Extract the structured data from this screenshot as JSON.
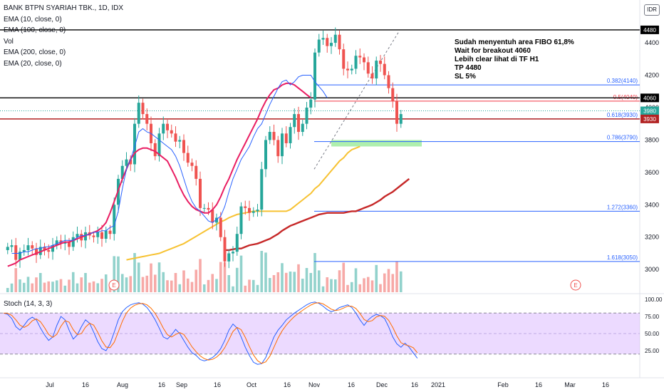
{
  "header": {
    "symbol": "BANK BTPN SYARIAH TBK., 1D, IDX",
    "currency": "IDR",
    "indicators": [
      "EMA (10, close, 0)",
      "EMA (100, close, 0)",
      "Vol",
      "EMA (200, close, 0)",
      "EMA (20, close, 0)"
    ]
  },
  "note": {
    "lines": [
      "Sudah menyentuh area FIBO 61,8%",
      "Wait for breakout 4060",
      "Lebih clear lihat di TF H1",
      "TP 4480",
      "SL 5%"
    ]
  },
  "stoch": {
    "label": "Stoch (14, 3, 3)",
    "levels": [
      100,
      75,
      50,
      25
    ],
    "level_labels": [
      "100.00",
      "75.00",
      "50.00",
      "25.00"
    ],
    "band": [
      20,
      80
    ],
    "k": [
      80,
      78,
      72,
      60,
      55,
      62,
      70,
      74,
      70,
      58,
      48,
      40,
      45,
      62,
      75,
      70,
      55,
      42,
      48,
      60,
      70,
      65,
      52,
      38,
      28,
      25,
      35,
      52,
      70,
      82,
      88,
      92,
      94,
      95,
      93,
      88,
      80,
      70,
      58,
      45,
      42,
      48,
      56,
      50,
      40,
      30,
      22,
      18,
      12,
      10,
      12,
      15,
      20,
      28,
      40,
      55,
      64,
      58,
      45,
      30,
      18,
      8,
      5,
      6,
      15,
      30,
      45,
      55,
      62,
      70,
      75,
      80,
      84,
      88,
      92,
      95,
      96,
      94,
      90,
      85,
      82,
      84,
      88,
      90,
      92,
      88,
      80,
      70,
      62,
      70,
      75,
      78,
      76,
      72,
      60,
      45,
      35,
      30,
      36,
      30,
      22,
      14
    ]
  },
  "chart_data": {
    "type": "candlestick",
    "title": "BANK BTPN SYARIAH TBK., 1D, IDX",
    "ylim": [
      2860,
      4550
    ],
    "y_ticks": [
      3000,
      3200,
      3400,
      3600,
      3800,
      4000,
      4200,
      4400
    ],
    "x_tick_labels": [
      "Jul",
      "16",
      "Aug",
      "16",
      "Sep",
      "16",
      "Oct",
      "16",
      "Nov",
      "16",
      "Dec",
      "16",
      "2021",
      "Feb",
      "16",
      "Mar",
      "16"
    ],
    "closes": [
      3140,
      3150,
      3060,
      3110,
      3120,
      3150,
      3130,
      3090,
      3140,
      3120,
      3110,
      3150,
      3180,
      3160,
      3170,
      3140,
      3200,
      3220,
      3180,
      3230,
      3210,
      3200,
      3230,
      3190,
      3240,
      3220,
      3400,
      3560,
      3640,
      3680,
      3650,
      3900,
      4030,
      3960,
      3900,
      3780,
      3700,
      3840,
      3900,
      3860,
      3840,
      3790,
      3800,
      3720,
      3660,
      3640,
      3560,
      3380,
      3380,
      3370,
      3290,
      3320,
      3200,
      3050,
      3100,
      3110,
      3220,
      3390,
      3380,
      3350,
      3360,
      3370,
      3620,
      3800,
      3850,
      3800,
      3700,
      3840,
      3780,
      3880,
      3960,
      3850,
      3900,
      4000,
      4050,
      4340,
      4420,
      4430,
      4380,
      4400,
      4450,
      4360,
      4240,
      4230,
      4240,
      4320,
      4310,
      4280,
      4210,
      4180,
      4290,
      4270,
      4200,
      4120,
      4040,
      3900,
      3960
    ],
    "candle_start": 1,
    "ema10": [
      3100,
      3100,
      3100,
      3110,
      3110,
      3120,
      3130,
      3130,
      3140,
      3140,
      3150,
      3160,
      3170,
      3180,
      3180,
      3180,
      3200,
      3210,
      3210,
      3220,
      3230,
      3230,
      3240,
      3240,
      3260,
      3270,
      3360,
      3500,
      3620,
      3680,
      3760,
      3850,
      3870,
      3850,
      3840,
      3820,
      3800,
      3780,
      3760,
      3740,
      3700,
      3640,
      3560,
      3480,
      3420,
      3380,
      3360,
      3330,
      3300,
      3290,
      3310,
      3330,
      3390,
      3480,
      3560,
      3620,
      3680,
      3720,
      3760,
      3820,
      3870,
      3900,
      3960,
      4020,
      4070,
      4120,
      4160,
      4170,
      4140,
      4160,
      4190,
      4200,
      4200,
      4200,
      4160,
      4130,
      4100,
      4060
    ],
    "ema10_start": 2,
    "ema20": [
      3020,
      3030,
      3040,
      3060,
      3070,
      3080,
      3090,
      3100,
      3110,
      3120,
      3130,
      3140,
      3150,
      3160,
      3170,
      3170,
      3180,
      3190,
      3200,
      3210,
      3220,
      3230,
      3240,
      3260,
      3290,
      3350,
      3420,
      3490,
      3560,
      3620,
      3680,
      3720,
      3740,
      3750,
      3750,
      3740,
      3730,
      3710,
      3690,
      3670,
      3620,
      3570,
      3510,
      3460,
      3420,
      3390,
      3370,
      3360,
      3350,
      3350,
      3370,
      3400,
      3450,
      3510,
      3560,
      3620,
      3680,
      3730,
      3780,
      3830,
      3880,
      3930,
      3990,
      4040,
      4080,
      4110,
      4120,
      4140,
      4150,
      4150,
      4140,
      4120,
      4100,
      4080,
      4060
    ],
    "ema20_start": 1,
    "ema100": [
      3060,
      3065,
      3070,
      3075,
      3080,
      3085,
      3090,
      3095,
      3100,
      3110,
      3120,
      3130,
      3140,
      3150,
      3160,
      3175,
      3190,
      3205,
      3220,
      3235,
      3250,
      3265,
      3280,
      3295,
      3305,
      3320,
      3330,
      3340,
      3345,
      3350,
      3355,
      3360,
      3360,
      3360,
      3360,
      3360,
      3360,
      3360,
      3360,
      3360,
      3370,
      3390,
      3410,
      3430,
      3450,
      3470,
      3500,
      3520,
      3550,
      3580,
      3610,
      3640,
      3670,
      3690,
      3720,
      3740,
      3750,
      3760
    ],
    "ema100_start": 6,
    "ema200": [
      3120,
      3120,
      3125,
      3130,
      3130,
      3140,
      3150,
      3155,
      3160,
      3170,
      3180,
      3190,
      3205,
      3220,
      3240,
      3255,
      3270,
      3280,
      3290,
      3300,
      3310,
      3320,
      3330,
      3340,
      3345,
      3350,
      3350,
      3350,
      3350,
      3350,
      3355,
      3360,
      3360,
      3370,
      3380,
      3390,
      3400,
      3415,
      3430,
      3450,
      3465,
      3480,
      3500,
      3520,
      3540,
      3560
    ],
    "ema200_start": 18,
    "fib_levels": [
      {
        "label": "0.382(4140)",
        "value": 4140,
        "color": "#2962ff"
      },
      {
        "label": "0.5(4040)",
        "value": 4040,
        "color": "#f23645"
      },
      {
        "label": "0.618(3930)",
        "value": 3930,
        "color": "#2962ff"
      },
      {
        "label": "0.786(3790)",
        "value": 3790,
        "color": "#2962ff"
      },
      {
        "label": "1.272(3360)",
        "value": 3360,
        "color": "#2962ff"
      },
      {
        "label": "1.618(3050)",
        "value": 3050,
        "color": "#2962ff"
      }
    ],
    "horizontal_lines": [
      {
        "value": 4480,
        "label": "4480",
        "color": "#000000"
      },
      {
        "value": 4060,
        "label": "4060",
        "color": "#000000"
      },
      {
        "value": 3930,
        "label": "3930",
        "color": "#b22222"
      }
    ],
    "price_tags": [
      {
        "label": "4480",
        "bg": "#000000"
      },
      {
        "label": "4060",
        "bg": "#000000"
      },
      {
        "label": "3980",
        "bg": "#26a69a"
      },
      {
        "label": "3930",
        "bg": "#b22222"
      }
    ],
    "support_zone": [
      3760,
      3800
    ],
    "earnings_markers": [
      "E",
      "E"
    ]
  }
}
